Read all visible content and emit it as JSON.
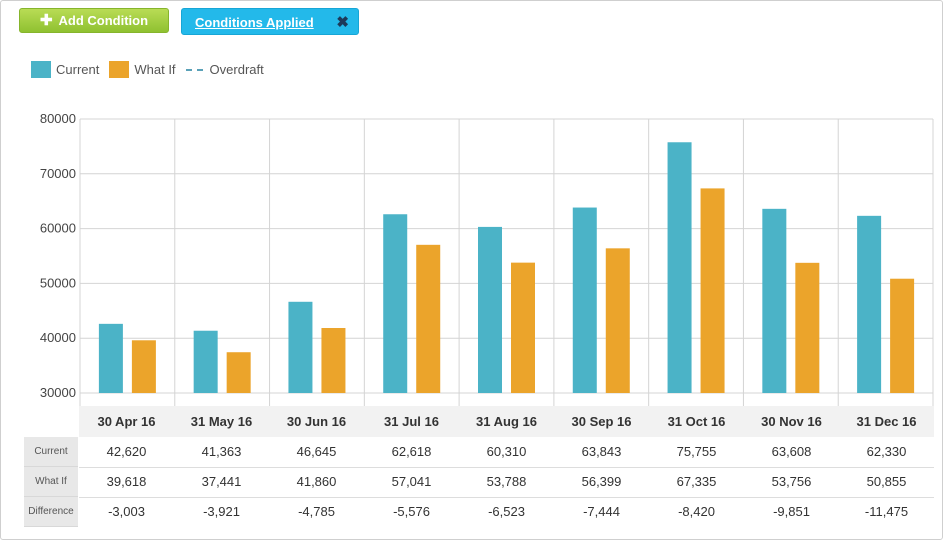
{
  "toolbar": {
    "add_label": "Add Condition",
    "applied_label": "Conditions Applied",
    "close_glyph": "✖"
  },
  "colors": {
    "current": "#4bb3c7",
    "whatif": "#eba42b",
    "overdraft": "#5aa1b8"
  },
  "chart_data": {
    "type": "bar",
    "categories": [
      "30 Apr 16",
      "31 May 16",
      "30 Jun 16",
      "31 Jul 16",
      "31 Aug 16",
      "30 Sep 16",
      "31 Oct 16",
      "30 Nov 16",
      "31 Dec 16"
    ],
    "series": [
      {
        "name": "Current",
        "values": [
          42620,
          41363,
          46645,
          62618,
          60310,
          63843,
          75755,
          63608,
          62330
        ]
      },
      {
        "name": "What If",
        "values": [
          39618,
          37441,
          41860,
          57041,
          53788,
          56399,
          67335,
          53756,
          50855
        ]
      }
    ],
    "legend": [
      "Current",
      "What If",
      "Overdraft"
    ],
    "legend_position": "top-left",
    "ylim": [
      30000,
      80000
    ],
    "yticks": [
      "30000",
      "40000",
      "50000",
      "60000",
      "70000",
      "80000"
    ],
    "grid": true,
    "table": {
      "row_labels": [
        "Current",
        "What If",
        "Difference"
      ],
      "rows": [
        [
          "42,620",
          "41,363",
          "46,645",
          "62,618",
          "60,310",
          "63,843",
          "75,755",
          "63,608",
          "62,330"
        ],
        [
          "39,618",
          "37,441",
          "41,860",
          "57,041",
          "53,788",
          "56,399",
          "67,335",
          "53,756",
          "50,855"
        ],
        [
          "-3,003",
          "-3,921",
          "-4,785",
          "-5,576",
          "-6,523",
          "-7,444",
          "-8,420",
          "-9,851",
          "-11,475"
        ]
      ]
    }
  }
}
